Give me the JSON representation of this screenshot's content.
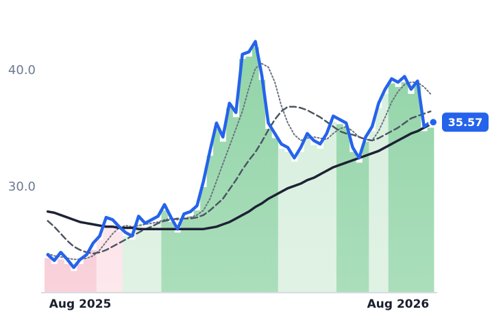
{
  "chart_data": {
    "type": "line",
    "categories": [
      null,
      null,
      null,
      null,
      null,
      "Aug 2025",
      null,
      null,
      null,
      null,
      null,
      null,
      null,
      null,
      null,
      null,
      null,
      null,
      null,
      null,
      null,
      null,
      null,
      null,
      null,
      null,
      null,
      null,
      null,
      null,
      null,
      null,
      null,
      null,
      null,
      null,
      null,
      null,
      null,
      null,
      null,
      null,
      null,
      null,
      null,
      null,
      null,
      null,
      null,
      null,
      null,
      null,
      null,
      null,
      "Aug 2026",
      null,
      null,
      null,
      null,
      null
    ],
    "ylim": [
      21,
      45
    ],
    "yticks": [
      {
        "value": 30,
        "label": "30.0"
      },
      {
        "value": 40,
        "label": "40.0"
      }
    ],
    "bars": {
      "values": [
        23.9,
        23.4,
        23.8,
        23.4,
        22.8,
        23.4,
        23.9,
        24.6,
        25.5,
        26.8,
        26.8,
        26.2,
        25.8,
        25.5,
        26.9,
        26.5,
        26.8,
        27.0,
        28.0,
        27.0,
        26.1,
        27.3,
        27.5,
        28.0,
        30.0,
        32.7,
        35.0,
        33.9,
        36.8,
        36.0,
        41.0,
        41.2,
        42.0,
        39.2,
        35.0,
        34.2,
        33.3,
        33.0,
        32.2,
        33.0,
        34.2,
        33.6,
        33.3,
        34.2,
        35.6,
        35.4,
        35.1,
        33.0,
        32.1,
        33.9,
        34.8,
        36.8,
        38.0,
        38.9,
        38.6,
        39.0,
        38.0,
        38.7,
        34.8,
        35.1
      ],
      "colors": [
        "#f7c3cf",
        "#f7c3cf",
        "#f7c3cf",
        "#f7c3cf",
        "#f7c3cf",
        "#f7c3cf",
        "#f7c3cf",
        "#f7c3cf",
        "#fde0e6",
        "#fde0e6",
        "#fde0e6",
        "#fde0e6",
        "#d6eedc",
        "#d6eedc",
        "#d6eedc",
        "#d6eedc",
        "#d6eedc",
        "#d6eedc",
        "#8fd3a5",
        "#8fd3a5",
        "#8fd3a5",
        "#8fd3a5",
        "#8fd3a5",
        "#8fd3a5",
        "#8fd3a5",
        "#8fd3a5",
        "#8fd3a5",
        "#8fd3a5",
        "#8fd3a5",
        "#8fd3a5",
        "#8fd3a5",
        "#8fd3a5",
        "#8fd3a5",
        "#8fd3a5",
        "#8fd3a5",
        "#8fd3a5",
        "#d6eedc",
        "#d6eedc",
        "#d6eedc",
        "#d6eedc",
        "#d6eedc",
        "#d6eedc",
        "#d6eedc",
        "#d6eedc",
        "#d6eedc",
        "#8fd3a5",
        "#8fd3a5",
        "#8fd3a5",
        "#8fd3a5",
        "#8fd3a5",
        "#d6eedc",
        "#d6eedc",
        "#d6eedc",
        "#8fd3a5",
        "#8fd3a5",
        "#8fd3a5",
        "#8fd3a5",
        "#8fd3a5",
        "#8fd3a5",
        "#8fd3a5"
      ]
    },
    "series": [
      {
        "color": "#6b7280",
        "style": "dotted",
        "values": [
          24.3,
          24.1,
          24.0,
          23.9,
          23.8,
          23.8,
          23.9,
          24.1,
          24.6,
          25.3,
          26.0,
          26.5,
          26.7,
          26.6,
          26.7,
          26.8,
          26.9,
          27.0,
          27.2,
          27.3,
          27.2,
          27.3,
          27.4,
          27.6,
          28.0,
          29.0,
          30.5,
          32.0,
          33.5,
          35.0,
          36.5,
          38.5,
          40.2,
          40.6,
          40.3,
          39.0,
          37.0,
          35.5,
          34.5,
          34.0,
          34.2,
          34.3,
          34.2,
          34.1,
          34.6,
          35.0,
          35.2,
          34.8,
          34.3,
          34.1,
          34.0,
          34.8,
          36.0,
          37.3,
          38.2,
          38.8,
          39.0,
          39.0,
          38.6,
          38.0
        ]
      },
      {
        "color": "#4b5563",
        "style": "dashed",
        "values": [
          27.1,
          26.6,
          26.0,
          25.4,
          24.9,
          24.6,
          24.4,
          24.3,
          24.4,
          24.6,
          24.9,
          25.2,
          25.5,
          25.8,
          26.1,
          26.4,
          26.6,
          26.9,
          27.1,
          27.2,
          27.3,
          27.3,
          27.3,
          27.4,
          27.6,
          28.0,
          28.5,
          29.0,
          29.8,
          30.6,
          31.5,
          32.3,
          33.0,
          33.9,
          34.9,
          35.8,
          36.5,
          36.9,
          36.9,
          36.8,
          36.6,
          36.3,
          36.0,
          35.6,
          35.2,
          34.8,
          34.6,
          34.5,
          34.3,
          34.1,
          34.0,
          34.2,
          34.5,
          34.8,
          35.1,
          35.5,
          35.9,
          36.1,
          36.3,
          36.5
        ]
      },
      {
        "color": "#1e2235",
        "style": "solid",
        "values": [
          27.9,
          27.8,
          27.6,
          27.4,
          27.2,
          27.0,
          26.9,
          26.8,
          26.7,
          26.6,
          26.6,
          26.5,
          26.5,
          26.5,
          26.4,
          26.4,
          26.4,
          26.4,
          26.4,
          26.4,
          26.4,
          26.4,
          26.4,
          26.4,
          26.4,
          26.5,
          26.6,
          26.8,
          27.0,
          27.3,
          27.6,
          27.9,
          28.3,
          28.6,
          29.0,
          29.3,
          29.6,
          29.9,
          30.1,
          30.3,
          30.6,
          30.8,
          31.1,
          31.4,
          31.7,
          31.9,
          32.1,
          32.3,
          32.5,
          32.7,
          32.9,
          33.1,
          33.4,
          33.7,
          34.0,
          34.3,
          34.6,
          34.8,
          35.1,
          35.4
        ]
      },
      {
        "color": "#2563eb",
        "style": "price",
        "values": [
          24.2,
          23.7,
          24.4,
          23.8,
          23.1,
          23.8,
          24.2,
          25.2,
          25.8,
          27.4,
          27.2,
          26.6,
          26.1,
          25.8,
          27.5,
          26.9,
          27.2,
          27.5,
          28.5,
          27.4,
          26.4,
          27.7,
          27.9,
          28.4,
          30.5,
          33.1,
          35.5,
          34.3,
          37.2,
          36.4,
          41.4,
          41.6,
          42.5,
          39.6,
          35.5,
          34.6,
          33.7,
          33.4,
          32.5,
          33.4,
          34.6,
          34.0,
          33.7,
          34.6,
          36.1,
          35.8,
          35.5,
          33.4,
          32.5,
          34.3,
          35.2,
          37.2,
          38.4,
          39.3,
          39.0,
          39.5,
          38.4,
          39.1,
          35.2,
          35.57
        ]
      }
    ]
  }
}
